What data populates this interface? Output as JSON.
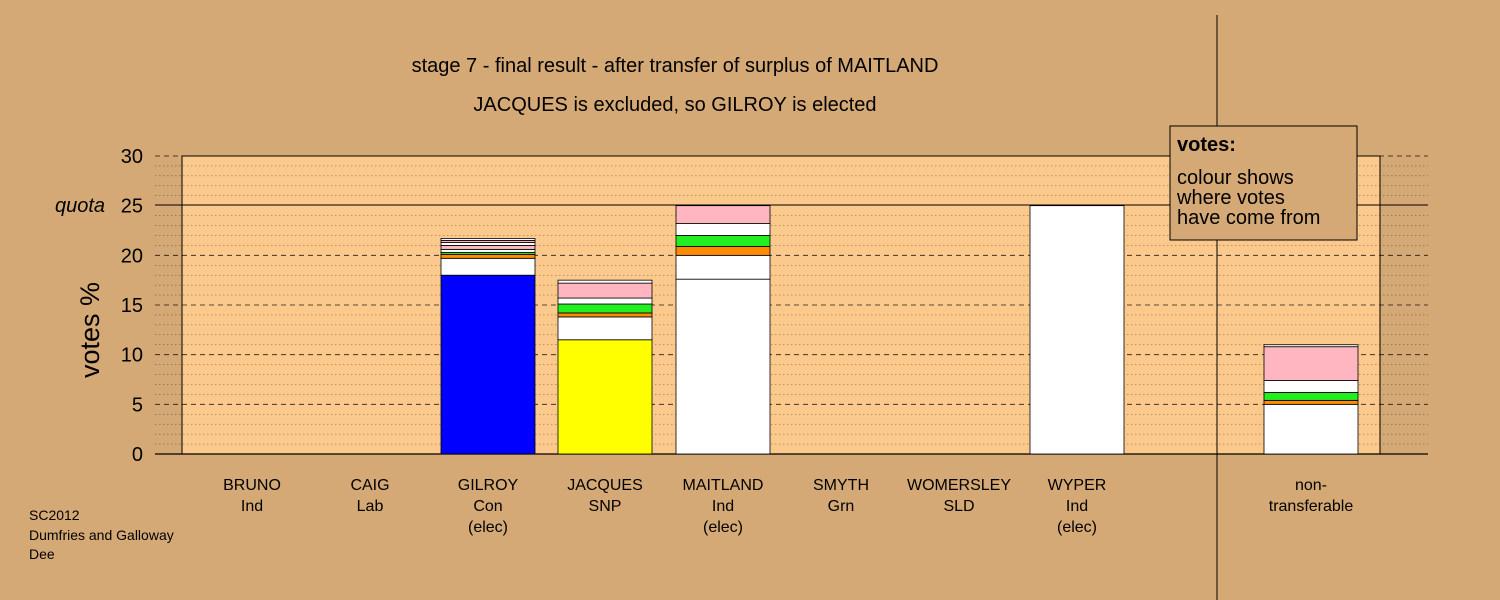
{
  "chart_data": {
    "type": "bar",
    "stacked": true,
    "title": "stage 7 - final result - after transfer of surplus of MAITLAND",
    "subtitle": "JACQUES is excluded, so GILROY is elected",
    "ylabel": "votes %",
    "ylim": [
      0,
      30
    ],
    "yticks": [
      0,
      5,
      10,
      15,
      20,
      25,
      30
    ],
    "quota": {
      "label": "quota",
      "value": 25
    },
    "categories": [
      {
        "key": "bruno",
        "lines": [
          "BRUNO",
          "Ind"
        ]
      },
      {
        "key": "caig",
        "lines": [
          "CAIG",
          "Lab"
        ]
      },
      {
        "key": "gilroy",
        "lines": [
          "GILROY",
          "Con",
          "(elec)"
        ]
      },
      {
        "key": "jacques",
        "lines": [
          "JACQUES",
          "SNP"
        ]
      },
      {
        "key": "maitland",
        "lines": [
          "MAITLAND",
          "Ind",
          "(elec)"
        ]
      },
      {
        "key": "smyth",
        "lines": [
          "SMYTH",
          "Grn"
        ]
      },
      {
        "key": "womersley",
        "lines": [
          "WOMERSLEY",
          "SLD"
        ]
      },
      {
        "key": "wyper",
        "lines": [
          "WYPER",
          "Ind",
          "(elec)"
        ]
      },
      {
        "key": "non-transferable",
        "lines": [
          "non-",
          "transferable"
        ]
      }
    ],
    "stacks": [
      {
        "category": "bruno",
        "segments": []
      },
      {
        "category": "caig",
        "segments": []
      },
      {
        "category": "gilroy",
        "segments": [
          {
            "from": "Con",
            "value": 18.0,
            "color": "#0000ff"
          },
          {
            "from": "Ind",
            "value": 1.7,
            "color": "#ffffff"
          },
          {
            "from": "Lab",
            "value": 0.4,
            "color": "#ff8c00"
          },
          {
            "from": "Grn",
            "value": 0.2,
            "color": "#22ee22"
          },
          {
            "from": "Ind",
            "value": 0.3,
            "color": "#ffffff"
          },
          {
            "from": "SLD",
            "value": 0.4,
            "color": "#ffb6c1"
          },
          {
            "from": "Ind",
            "value": 0.3,
            "color": "#ffffff"
          },
          {
            "from": "SLD",
            "value": 0.2,
            "color": "#ffb6c1"
          },
          {
            "from": "Ind",
            "value": 0.2,
            "color": "#ffffff"
          }
        ]
      },
      {
        "category": "jacques",
        "segments": [
          {
            "from": "SNP",
            "value": 11.5,
            "color": "#ffff00"
          },
          {
            "from": "Ind",
            "value": 2.3,
            "color": "#ffffff"
          },
          {
            "from": "Lab",
            "value": 0.4,
            "color": "#ff8c00"
          },
          {
            "from": "Grn",
            "value": 0.9,
            "color": "#22ee22"
          },
          {
            "from": "Ind",
            "value": 0.6,
            "color": "#ffffff"
          },
          {
            "from": "SLD",
            "value": 1.5,
            "color": "#ffb6c1"
          },
          {
            "from": "Ind",
            "value": 0.3,
            "color": "#ffffff"
          }
        ]
      },
      {
        "category": "maitland",
        "segments": [
          {
            "from": "Ind",
            "value": 17.6,
            "color": "#ffffff"
          },
          {
            "from": "Ind",
            "value": 2.4,
            "color": "#ffffff"
          },
          {
            "from": "Lab",
            "value": 0.9,
            "color": "#ff8c00"
          },
          {
            "from": "Grn",
            "value": 1.1,
            "color": "#22ee22"
          },
          {
            "from": "Ind",
            "value": 1.2,
            "color": "#ffffff"
          },
          {
            "from": "SLD",
            "value": 1.8,
            "color": "#ffb6c1"
          }
        ]
      },
      {
        "category": "smyth",
        "segments": []
      },
      {
        "category": "womersley",
        "segments": []
      },
      {
        "category": "wyper",
        "segments": [
          {
            "from": "Ind",
            "value": 25.0,
            "color": "#ffffff"
          }
        ]
      },
      {
        "category": "non-transferable",
        "segments": [
          {
            "from": "Ind",
            "value": 5.0,
            "color": "#ffffff"
          },
          {
            "from": "Lab",
            "value": 0.4,
            "color": "#ff8c00"
          },
          {
            "from": "Grn",
            "value": 0.8,
            "color": "#22ee22"
          },
          {
            "from": "Ind",
            "value": 1.2,
            "color": "#ffffff"
          },
          {
            "from": "SLD",
            "value": 3.4,
            "color": "#ffb6c1"
          },
          {
            "from": "Ind",
            "value": 0.2,
            "color": "#ffffff"
          }
        ]
      }
    ],
    "legend": {
      "title": "votes:",
      "lines": [
        "colour shows",
        "where votes",
        "have come from"
      ],
      "placement": "top-right"
    },
    "grid": true
  },
  "footer": {
    "lines": [
      "SC2012",
      "Dumfries and Galloway",
      "Dee"
    ]
  },
  "colors": {
    "background": "#d4a976",
    "plot_area": "#fcc98d"
  }
}
